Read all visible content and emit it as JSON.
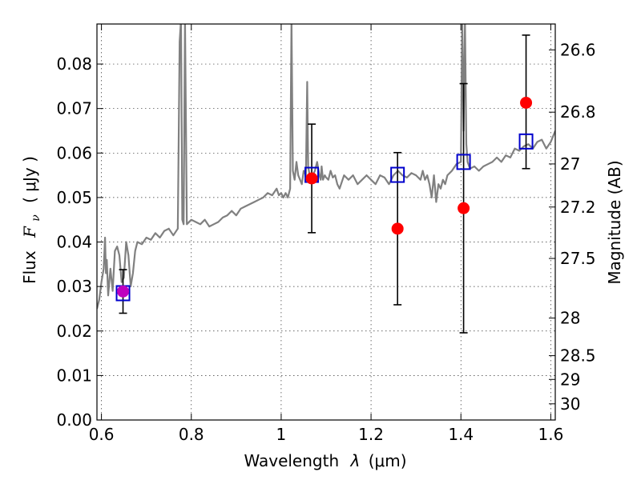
{
  "chart_data": {
    "type": "scatter",
    "xlabel_text": "Wavelength",
    "xlabel_symbol": "λ",
    "xlabel_unit": "(μm)",
    "ylabel_prefix": "Flux",
    "ylabel_symbol": "F",
    "ylabel_subscript": "ν",
    "ylabel_unit": "( μJy )",
    "y2label": "Magnitude (AB)",
    "xlim": [
      0.59,
      1.61
    ],
    "ylim": [
      0.0,
      0.089
    ],
    "x_ticks": [
      0.6,
      0.8,
      1.0,
      1.2,
      1.4,
      1.6
    ],
    "x_tick_labels": [
      "0.6",
      "0.8",
      "1",
      "1.2",
      "1.4",
      "1.6"
    ],
    "y_ticks": [
      0.0,
      0.01,
      0.02,
      0.03,
      0.04,
      0.05,
      0.06,
      0.07,
      0.08
    ],
    "y_tick_labels": [
      "0.00",
      "0.01",
      "0.02",
      "0.03",
      "0.04",
      "0.05",
      "0.06",
      "0.07",
      "0.08"
    ],
    "mag_ticks": [
      26.6,
      26.8,
      27,
      27.2,
      27.5,
      28,
      28.5,
      29,
      30
    ],
    "mag_tick_labels": [
      "26.6",
      "26.8",
      "27",
      "27.2",
      "27.5",
      "28",
      "28.5",
      "29",
      "30"
    ],
    "grid": true,
    "colors": {
      "spectrum": "#808080",
      "observed": "#ff0000",
      "observed_first": "#bf00bf",
      "model": "#0000cc",
      "errorbar": "#000000"
    },
    "series": [
      {
        "name": "spectrum",
        "style": "line",
        "x": [
          0.59,
          0.595,
          0.6,
          0.605,
          0.608,
          0.61,
          0.612,
          0.615,
          0.62,
          0.625,
          0.63,
          0.635,
          0.64,
          0.645,
          0.65,
          0.655,
          0.66,
          0.665,
          0.67,
          0.675,
          0.68,
          0.69,
          0.7,
          0.71,
          0.72,
          0.73,
          0.74,
          0.75,
          0.76,
          0.77,
          0.774,
          0.777,
          0.78,
          0.783,
          0.786,
          0.79,
          0.8,
          0.81,
          0.82,
          0.83,
          0.84,
          0.85,
          0.86,
          0.87,
          0.88,
          0.89,
          0.9,
          0.91,
          0.92,
          0.93,
          0.94,
          0.95,
          0.96,
          0.97,
          0.98,
          0.99,
          0.995,
          1.0,
          1.005,
          1.01,
          1.015,
          1.02,
          1.023,
          1.026,
          1.03,
          1.034,
          1.038,
          1.042,
          1.046,
          1.05,
          1.055,
          1.058,
          1.06,
          1.065,
          1.07,
          1.075,
          1.08,
          1.085,
          1.088,
          1.09,
          1.093,
          1.097,
          1.1,
          1.105,
          1.11,
          1.115,
          1.12,
          1.125,
          1.13,
          1.14,
          1.15,
          1.16,
          1.17,
          1.18,
          1.19,
          1.2,
          1.21,
          1.22,
          1.23,
          1.24,
          1.25,
          1.26,
          1.27,
          1.28,
          1.29,
          1.3,
          1.31,
          1.315,
          1.32,
          1.325,
          1.33,
          1.335,
          1.34,
          1.345,
          1.35,
          1.355,
          1.36,
          1.365,
          1.37,
          1.38,
          1.39,
          1.4,
          1.403,
          1.406,
          1.409,
          1.412,
          1.415,
          1.42,
          1.43,
          1.44,
          1.45,
          1.46,
          1.47,
          1.48,
          1.49,
          1.5,
          1.51,
          1.52,
          1.53,
          1.54,
          1.55,
          1.56,
          1.57,
          1.58,
          1.59,
          1.6,
          1.61
        ],
        "y": [
          0.025,
          0.027,
          0.031,
          0.034,
          0.041,
          0.033,
          0.036,
          0.028,
          0.034,
          0.029,
          0.038,
          0.039,
          0.037,
          0.031,
          0.032,
          0.04,
          0.037,
          0.03,
          0.033,
          0.038,
          0.04,
          0.0395,
          0.041,
          0.0405,
          0.042,
          0.041,
          0.0425,
          0.043,
          0.0415,
          0.043,
          0.085,
          0.09,
          0.045,
          0.044,
          0.09,
          0.044,
          0.045,
          0.0445,
          0.044,
          0.045,
          0.0435,
          0.044,
          0.0445,
          0.0455,
          0.046,
          0.047,
          0.046,
          0.0475,
          0.048,
          0.0485,
          0.049,
          0.0495,
          0.05,
          0.051,
          0.0505,
          0.052,
          0.0505,
          0.051,
          0.05,
          0.051,
          0.05,
          0.052,
          0.09,
          0.056,
          0.054,
          0.058,
          0.055,
          0.054,
          0.053,
          0.056,
          0.055,
          0.076,
          0.057,
          0.054,
          0.055,
          0.056,
          0.058,
          0.055,
          0.054,
          0.057,
          0.054,
          0.055,
          0.0545,
          0.054,
          0.056,
          0.0545,
          0.055,
          0.053,
          0.052,
          0.055,
          0.054,
          0.055,
          0.053,
          0.054,
          0.055,
          0.054,
          0.053,
          0.055,
          0.0545,
          0.053,
          0.055,
          0.056,
          0.055,
          0.0545,
          0.0555,
          0.055,
          0.054,
          0.056,
          0.054,
          0.055,
          0.053,
          0.05,
          0.055,
          0.049,
          0.053,
          0.052,
          0.054,
          0.053,
          0.055,
          0.056,
          0.0575,
          0.058,
          0.09,
          0.065,
          0.09,
          0.062,
          0.058,
          0.0565,
          0.057,
          0.056,
          0.057,
          0.0575,
          0.058,
          0.059,
          0.058,
          0.0595,
          0.059,
          0.061,
          0.0605,
          0.0615,
          0.062,
          0.061,
          0.0625,
          0.063,
          0.061,
          0.0625,
          0.065
        ]
      },
      {
        "name": "observed",
        "style": "errorbar",
        "x": [
          0.648,
          1.068,
          1.259,
          1.406,
          1.545
        ],
        "y": [
          0.0289,
          0.0543,
          0.043,
          0.0476,
          0.0713
        ],
        "yerr_low": [
          0.0049,
          0.0122,
          0.0171,
          0.028,
          0.0148
        ],
        "yerr_high": [
          0.0049,
          0.0122,
          0.0171,
          0.028,
          0.0152
        ]
      },
      {
        "name": "model photometry",
        "style": "square",
        "x": [
          0.648,
          1.068,
          1.259,
          1.406,
          1.545
        ],
        "y": [
          0.0285,
          0.0551,
          0.0551,
          0.058,
          0.0626
        ]
      }
    ]
  }
}
